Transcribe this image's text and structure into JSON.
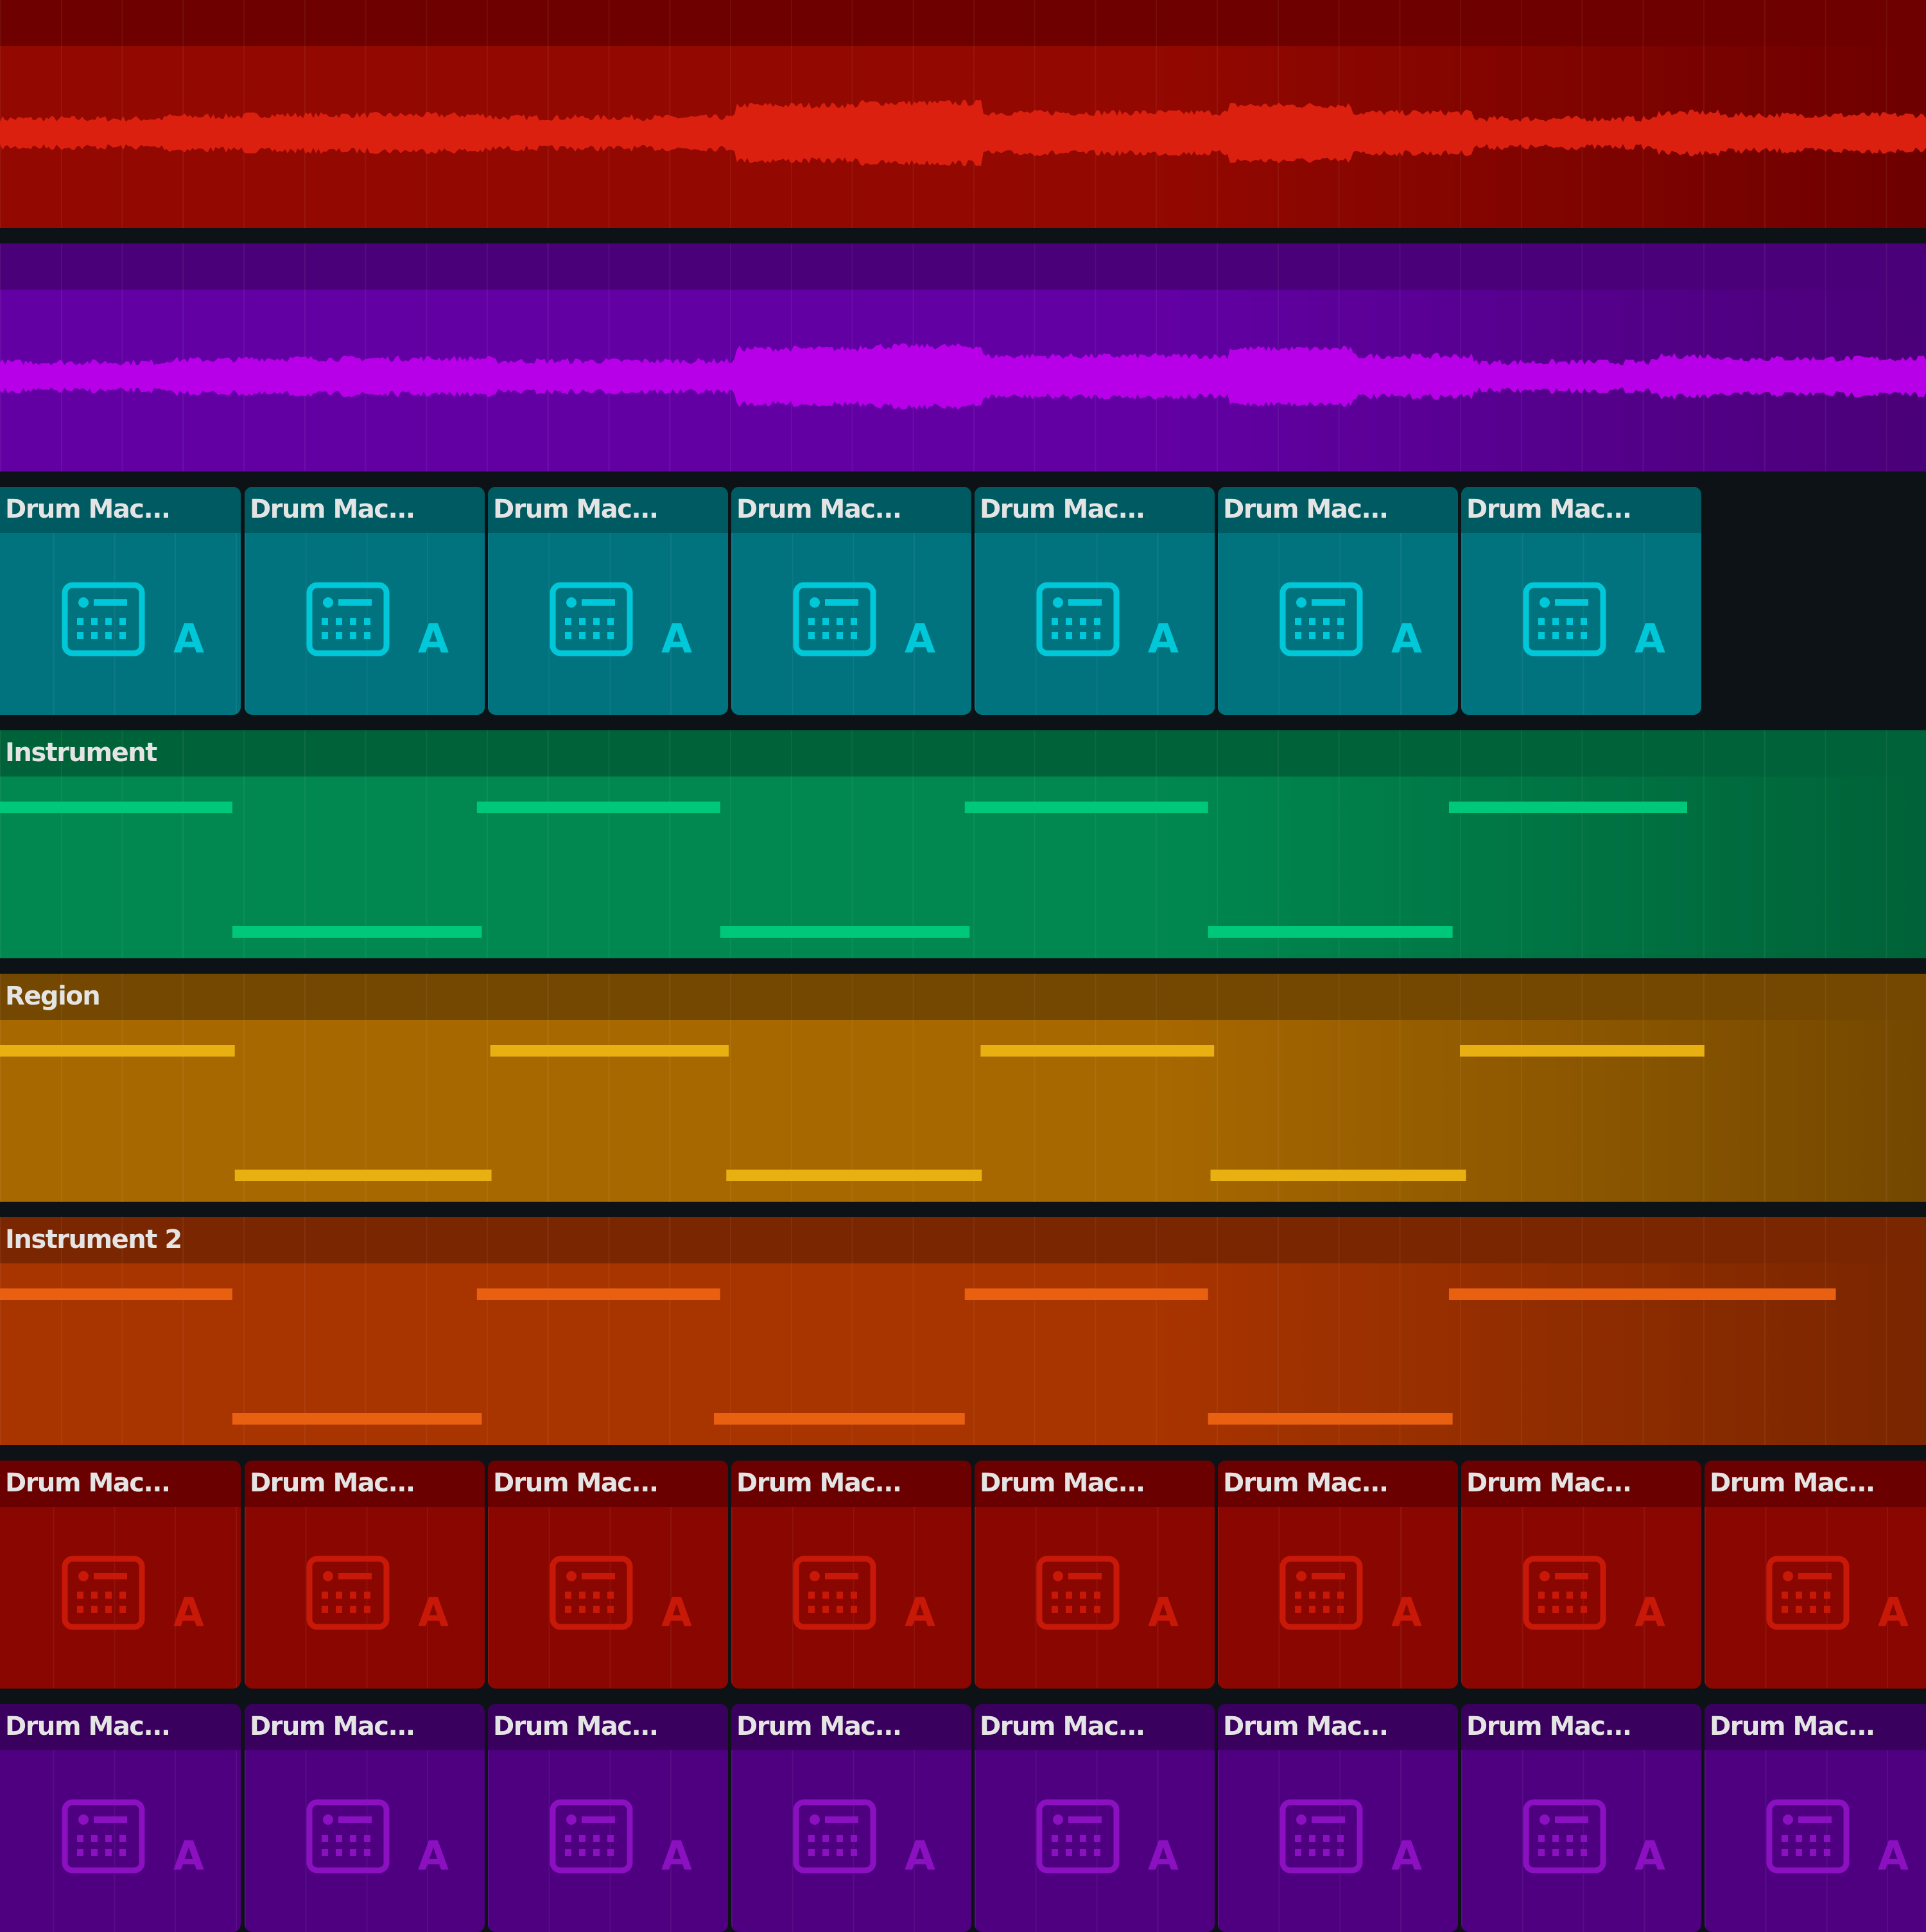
{
  "tracks": [
    {
      "type": "audio",
      "colors": {
        "header": "#6e0000",
        "body": "#930800",
        "wave": "#dc2010"
      }
    },
    {
      "type": "audio",
      "colors": {
        "header": "#4a0078",
        "body": "#6200a4",
        "wave": "#b800e8"
      }
    },
    {
      "type": "drum",
      "clip_count": 7,
      "clip_label": "Drum Mac...",
      "clip_letter": "A",
      "icon": "drum-machine-icon",
      "colors": {
        "header": "#005a62",
        "body": "#00737f",
        "icon": "#00c8d8"
      }
    },
    {
      "type": "midi",
      "name": "Instrument",
      "colors": {
        "header": "#006238",
        "body": "#008850",
        "note": "#00c87a"
      },
      "notes": [
        {
          "pitch": "high",
          "start": 0,
          "end": 0.955
        },
        {
          "pitch": "low",
          "start": 0.955,
          "end": 1.98
        },
        {
          "pitch": "high",
          "start": 1.96,
          "end": 2.96
        },
        {
          "pitch": "low",
          "start": 2.96,
          "end": 3.985
        },
        {
          "pitch": "high",
          "start": 3.965,
          "end": 4.965
        },
        {
          "pitch": "low",
          "start": 4.965,
          "end": 5.97
        },
        {
          "pitch": "high",
          "start": 5.955,
          "end": 6.934
        }
      ]
    },
    {
      "type": "midi",
      "name": "Region",
      "colors": {
        "header": "#744800",
        "body": "#a86800",
        "note": "#e8b010"
      },
      "notes": [
        {
          "pitch": "high",
          "start": 0,
          "end": 0.965
        },
        {
          "pitch": "low",
          "start": 0.965,
          "end": 2.02
        },
        {
          "pitch": "high",
          "start": 2.015,
          "end": 2.995
        },
        {
          "pitch": "low",
          "start": 2.985,
          "end": 4.035
        },
        {
          "pitch": "high",
          "start": 4.03,
          "end": 4.99
        },
        {
          "pitch": "low",
          "start": 4.975,
          "end": 6.025
        },
        {
          "pitch": "high",
          "start": 6.0,
          "end": 7.005
        }
      ]
    },
    {
      "type": "midi",
      "name": "Instrument 2",
      "colors": {
        "header": "#7a2600",
        "body": "#a83400",
        "note": "#e86010"
      },
      "notes": [
        {
          "pitch": "high",
          "start": 0,
          "end": 0.955
        },
        {
          "pitch": "low",
          "start": 0.955,
          "end": 1.98
        },
        {
          "pitch": "high",
          "start": 1.96,
          "end": 2.96
        },
        {
          "pitch": "low",
          "start": 2.934,
          "end": 3.965
        },
        {
          "pitch": "high",
          "start": 3.965,
          "end": 4.965
        },
        {
          "pitch": "low",
          "start": 4.965,
          "end": 5.97
        },
        {
          "pitch": "high",
          "start": 5.955,
          "end": 7.545
        }
      ]
    },
    {
      "type": "drum",
      "clip_count": 8,
      "clip_label": "Drum Mac...",
      "clip_letter": "A",
      "icon": "drum-machine-icon",
      "colors": {
        "header": "#6a0000",
        "body": "#8a0600",
        "icon": "#c81808"
      }
    },
    {
      "type": "drum",
      "clip_count": 8,
      "clip_label": "Drum Mac...",
      "clip_letter": "A",
      "icon": "drum-machine-icon",
      "colors": {
        "header": "#3a005e",
        "body": "#4e0080",
        "icon": "#8a10c0"
      }
    }
  ]
}
